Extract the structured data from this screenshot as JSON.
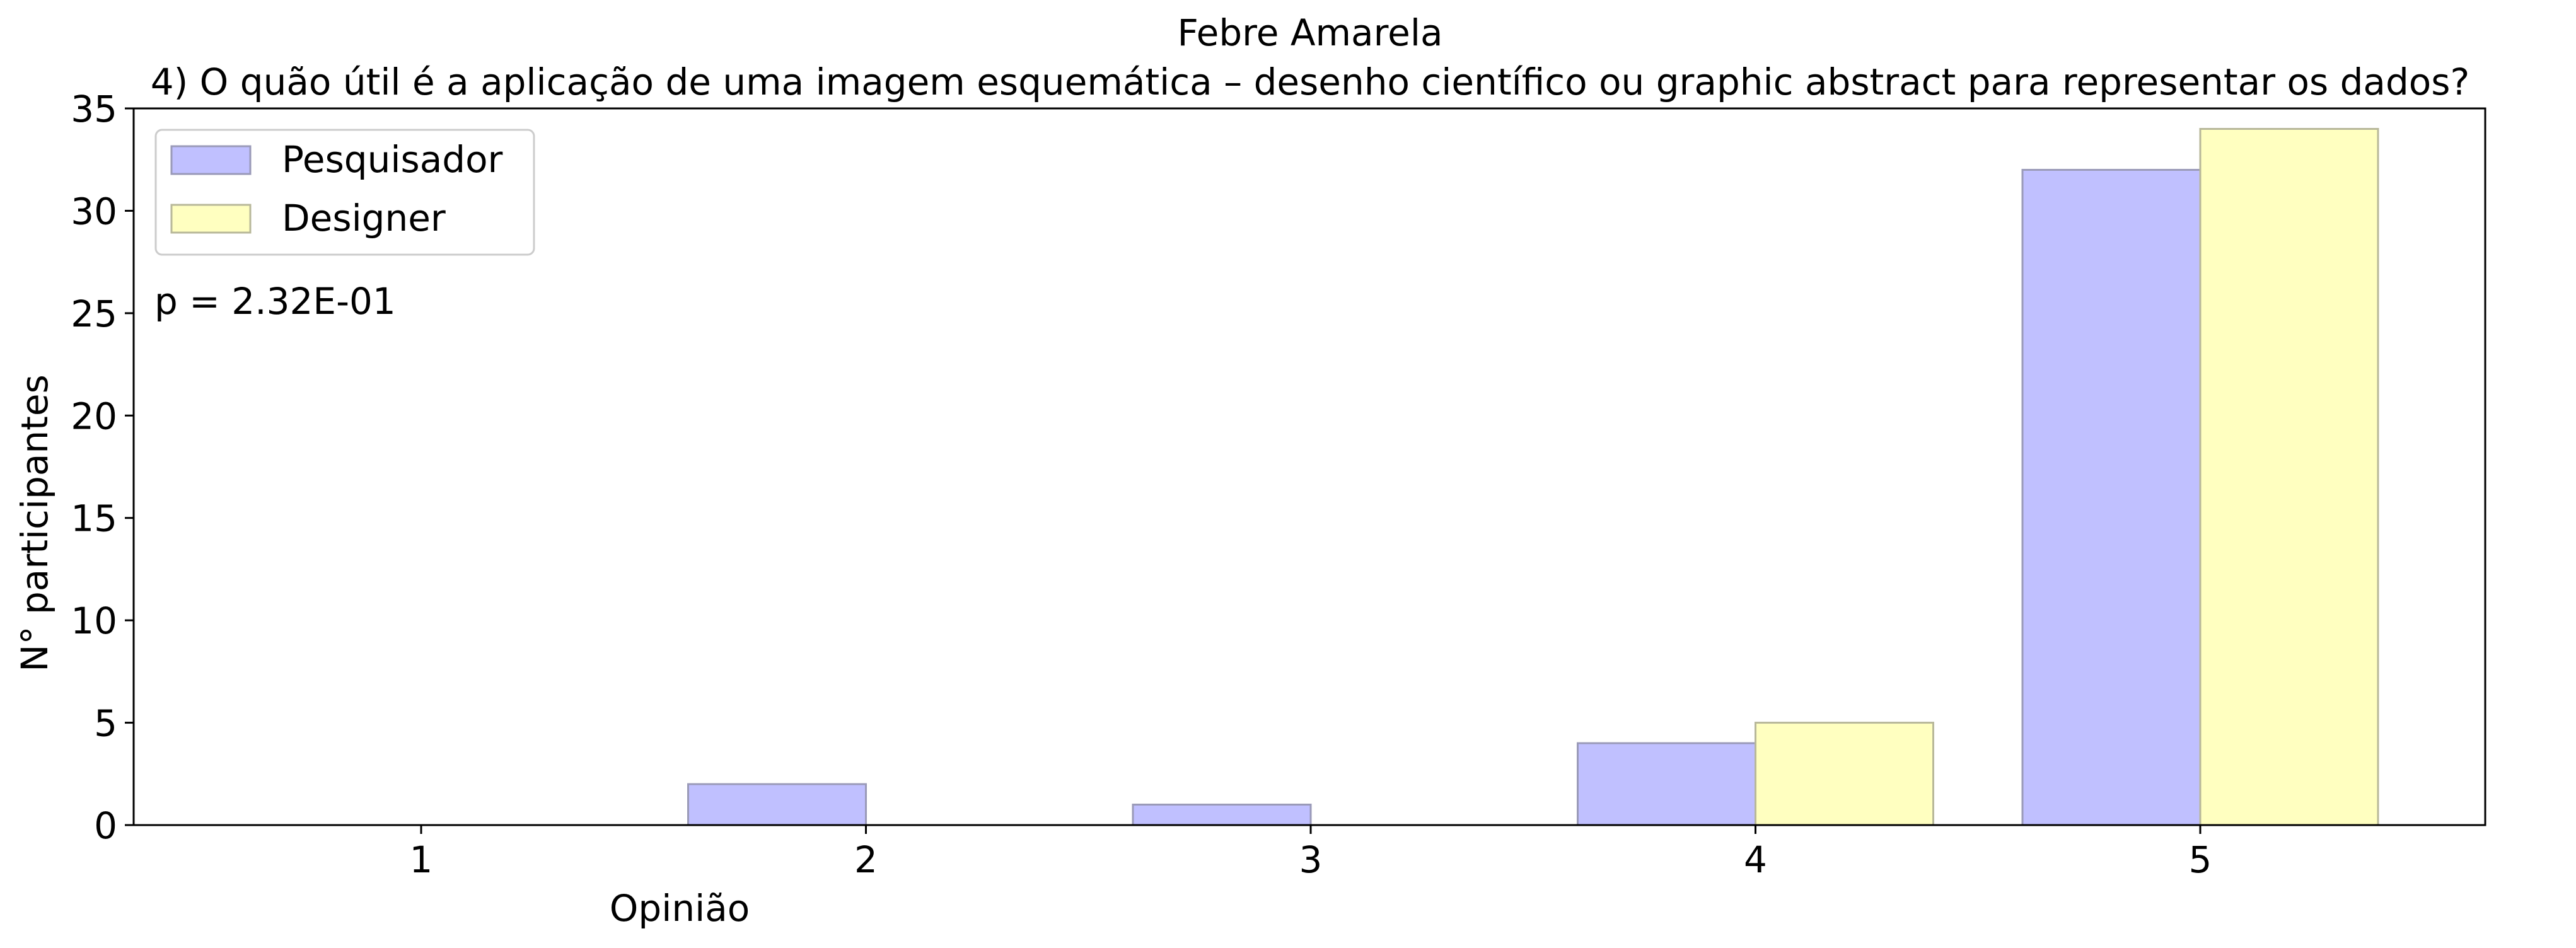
{
  "chart_data": {
    "type": "bar",
    "title": "Febre Amarela",
    "subtitle": "4) O quão útil é a aplicação de uma imagem esquemática – desenho científico ou graphic abstract para representar os dados?",
    "xlabel": "Opinião",
    "ylabel": "N° participantes",
    "categories": [
      "1",
      "2",
      "3",
      "4",
      "5"
    ],
    "yticks": [
      "0",
      "5",
      "10",
      "15",
      "20",
      "25",
      "30",
      "35"
    ],
    "ylim": [
      0,
      35
    ],
    "grid": false,
    "legend_position": "top-left",
    "annotation": "p = 2.32E-01",
    "series": [
      {
        "name": "Pesquisador",
        "values": [
          0,
          2,
          1,
          4,
          32
        ],
        "color": "#c0c0ff",
        "edge": "#9a9ab8"
      },
      {
        "name": "Designer",
        "values": [
          0,
          0,
          0,
          5,
          34
        ],
        "color": "#ffffc0",
        "edge": "#b8b89a"
      }
    ]
  }
}
